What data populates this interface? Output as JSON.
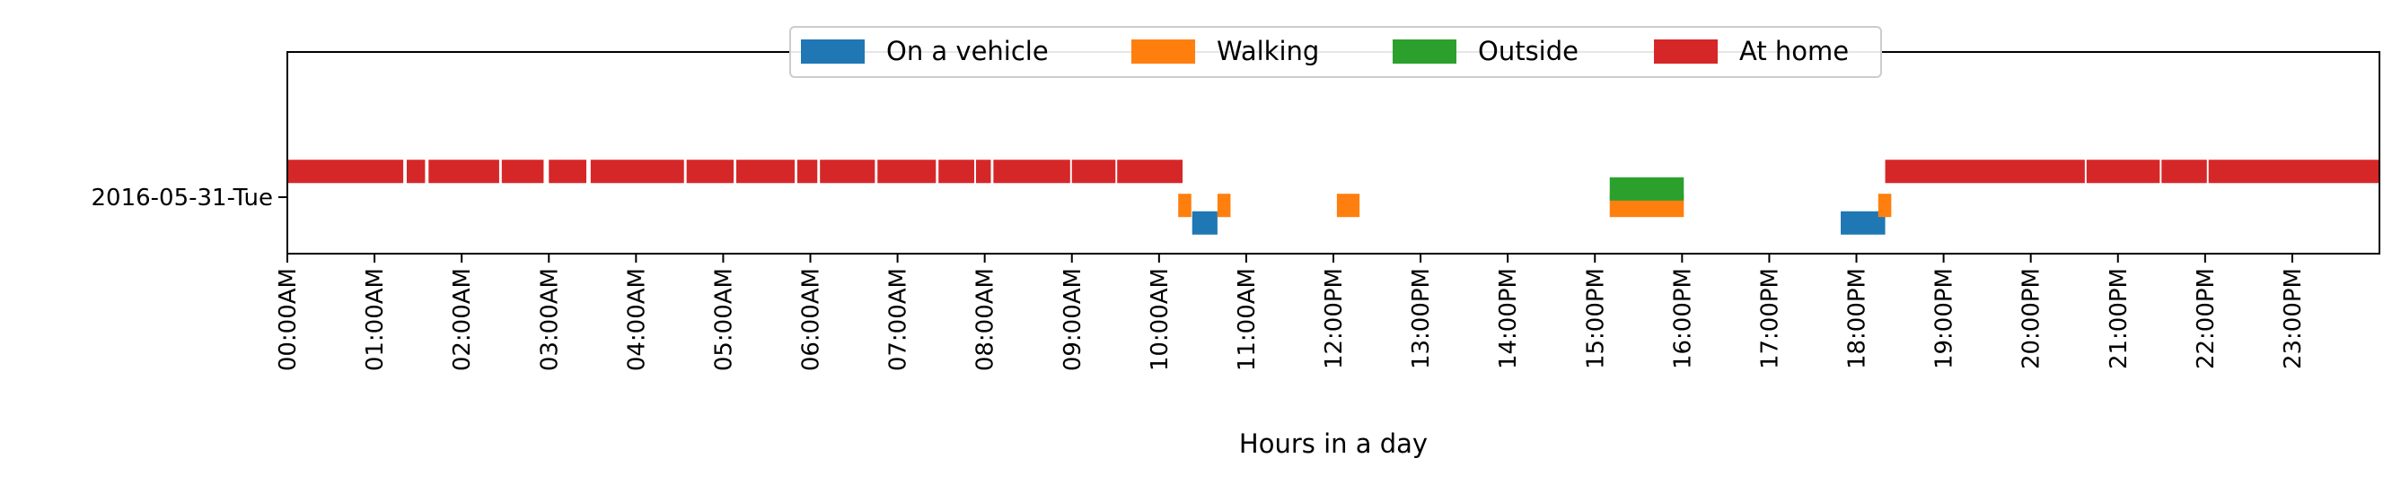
{
  "chart_data": {
    "type": "timeline",
    "title": "",
    "xlabel": "Hours in a day",
    "ylabel": "",
    "x_unit": "hours",
    "xlim": [
      0,
      24
    ],
    "x_ticks": [
      {
        "value": 0,
        "label": "00:00AM"
      },
      {
        "value": 1,
        "label": "01:00AM"
      },
      {
        "value": 2,
        "label": "02:00AM"
      },
      {
        "value": 3,
        "label": "03:00AM"
      },
      {
        "value": 4,
        "label": "04:00AM"
      },
      {
        "value": 5,
        "label": "05:00AM"
      },
      {
        "value": 6,
        "label": "06:00AM"
      },
      {
        "value": 7,
        "label": "07:00AM"
      },
      {
        "value": 8,
        "label": "08:00AM"
      },
      {
        "value": 9,
        "label": "09:00AM"
      },
      {
        "value": 10,
        "label": "10:00AM"
      },
      {
        "value": 11,
        "label": "11:00AM"
      },
      {
        "value": 12,
        "label": "12:00PM"
      },
      {
        "value": 13,
        "label": "13:00PM"
      },
      {
        "value": 14,
        "label": "14:00PM"
      },
      {
        "value": 15,
        "label": "15:00PM"
      },
      {
        "value": 16,
        "label": "16:00PM"
      },
      {
        "value": 17,
        "label": "17:00PM"
      },
      {
        "value": 18,
        "label": "18:00PM"
      },
      {
        "value": 19,
        "label": "19:00PM"
      },
      {
        "value": 20,
        "label": "20:00PM"
      },
      {
        "value": 21,
        "label": "21:00PM"
      },
      {
        "value": 22,
        "label": "22:00PM"
      },
      {
        "value": 23,
        "label": "23:00PM"
      }
    ],
    "categories": [
      "2016-05-31-Tue"
    ],
    "legend_position": "top-center",
    "series": [
      {
        "name": "On a vehicle",
        "color": "#1f77b4",
        "level": -0.25,
        "intervals": [
          [
            10.38,
            10.67
          ],
          [
            17.82,
            18.33
          ]
        ]
      },
      {
        "name": "Walking",
        "color": "#ff7f0e",
        "level": -0.08,
        "intervals": [
          [
            10.22,
            10.37
          ],
          [
            10.67,
            10.82
          ],
          [
            12.04,
            12.3
          ],
          [
            15.17,
            16.02
          ],
          [
            18.25,
            18.4
          ]
        ]
      },
      {
        "name": "Outside",
        "color": "#2ca02c",
        "level": 0.08,
        "intervals": [
          [
            15.17,
            16.02
          ]
        ]
      },
      {
        "name": "At home",
        "color": "#d62728",
        "level": 0.25,
        "intervals": [
          [
            0.0,
            1.33
          ],
          [
            1.37,
            1.58
          ],
          [
            1.62,
            2.43
          ],
          [
            2.46,
            2.94
          ],
          [
            3.0,
            3.43
          ],
          [
            3.48,
            4.55
          ],
          [
            4.58,
            5.12
          ],
          [
            5.15,
            5.82
          ],
          [
            5.85,
            6.08
          ],
          [
            6.11,
            6.74
          ],
          [
            6.77,
            7.44
          ],
          [
            7.47,
            7.88
          ],
          [
            7.9,
            8.07
          ],
          [
            8.1,
            8.98
          ],
          [
            9.0,
            9.5
          ],
          [
            9.52,
            10.27
          ],
          [
            18.33,
            20.62
          ],
          [
            20.64,
            21.48
          ],
          [
            21.5,
            22.02
          ],
          [
            22.04,
            24.0
          ]
        ]
      }
    ]
  }
}
